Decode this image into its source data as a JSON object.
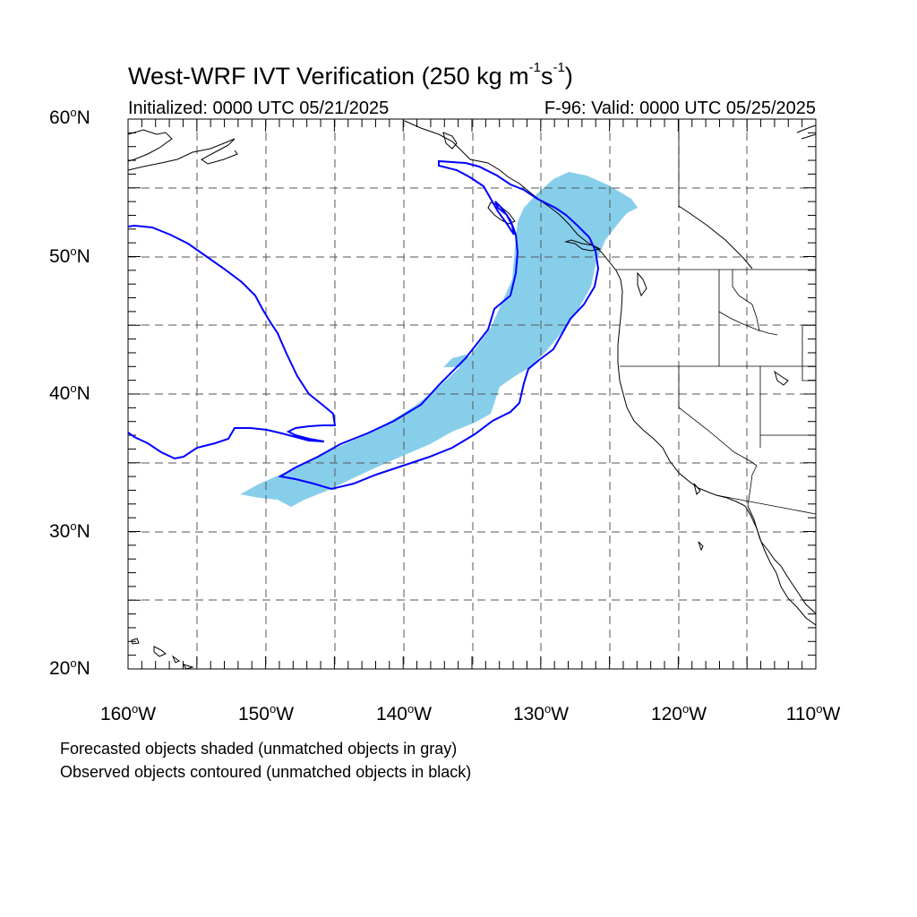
{
  "title": {
    "main": "West-WRF IVT Verification (250 kg m",
    "exp1": "-1",
    "mid": "s",
    "exp2": "-1",
    "end": ")"
  },
  "initialized": "Initialized: 0000 UTC 05/21/2025",
  "valid": "F-96: Valid: 0000 UTC 05/25/2025",
  "lat_labels": [
    "60",
    "50",
    "40",
    "30",
    "20"
  ],
  "lat_suffix": "N",
  "lon_labels": [
    "160",
    "150",
    "140",
    "130",
    "120",
    "110"
  ],
  "lon_suffix": "W",
  "degree_symbol": "o",
  "notes": [
    "Forecasted objects shaded (unmatched objects in gray)",
    "Observed objects contoured (unmatched objects in black)"
  ],
  "map": {
    "lon_range": [
      -160,
      -110
    ],
    "lat_range": [
      20,
      60
    ],
    "forecast_fill_color": "#87CEEB",
    "observed_contour_color": "#0000FF",
    "grid_style": "dashed"
  }
}
